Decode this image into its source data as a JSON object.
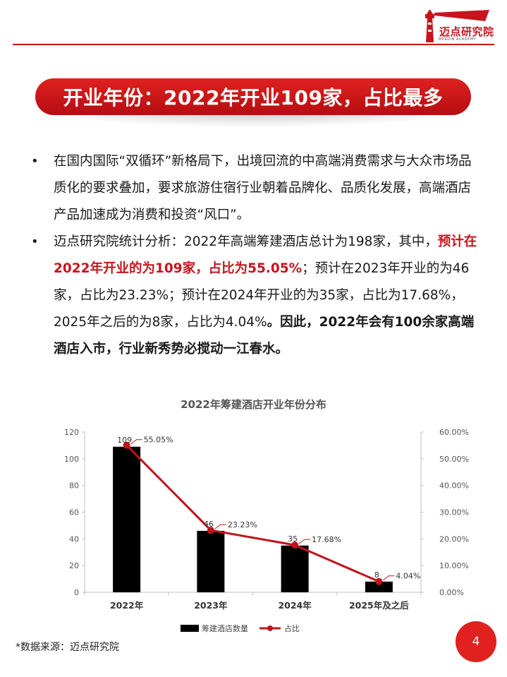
{
  "header": {
    "logo_text": "迈点研究院",
    "logo_subtext": "MEADIN ACADEMY",
    "accent_color": "#c8141e"
  },
  "title": "开业年份：2022年开业109家，占比最多",
  "bullets": [
    {
      "segments": [
        {
          "text": "在国内国际“双循环”新格局下，出境回流的中高端消费需求与大众市场品质化的要求叠加，要求旅游住宿行业朝着品牌化、品质化发展，高端酒店产品加速成为消费和投资“风口”。",
          "style": "normal"
        }
      ]
    },
    {
      "segments": [
        {
          "text": "迈点研究院统计分析：2022年高端筹建酒店总计为198家，其中，",
          "style": "normal"
        },
        {
          "text": "预计在2022年开业的为109家，占比为55.05%",
          "style": "highlight"
        },
        {
          "text": "；预计在2023年开业的为46家，占比为23.23%；预计在2024年开业的为35家，占比为17.68%，2025年之后的为8家，占比为4.04%",
          "style": "normal"
        },
        {
          "text": "。因此，2022年会有100余家高端酒店入市，行业新秀势必搅动一江春水。",
          "style": "bold"
        }
      ]
    }
  ],
  "chart_title": "2022年筹建酒店开业年份分布",
  "chart_data": {
    "type": "bar",
    "categories": [
      "2022年",
      "2023年",
      "2024年",
      "2025年及之后"
    ],
    "series": [
      {
        "name": "筹建酒店数量",
        "type": "bar",
        "values": [
          109,
          46,
          35,
          8
        ],
        "labels": [
          "109",
          "46",
          "35",
          "8"
        ],
        "color": "#000000",
        "axis": "left"
      },
      {
        "name": "占比",
        "type": "line",
        "values": [
          55.05,
          23.23,
          17.68,
          4.04
        ],
        "labels": [
          "55.05%",
          "23.23%",
          "17.68%",
          "4.04%"
        ],
        "color": "#c0141c",
        "axis": "right"
      }
    ],
    "y_left": {
      "min": 0,
      "max": 120,
      "ticks": [
        "0",
        "20",
        "40",
        "60",
        "80",
        "100",
        "120"
      ]
    },
    "y_right": {
      "min": 0,
      "max": 60,
      "ticks": [
        "0.00%",
        "10.00%",
        "20.00%",
        "30.00%",
        "40.00%",
        "50.00%",
        "60.00%"
      ]
    },
    "legend_position": "bottom",
    "grid": false
  },
  "source": "*数据来源：迈点研究院",
  "page_number": "4"
}
